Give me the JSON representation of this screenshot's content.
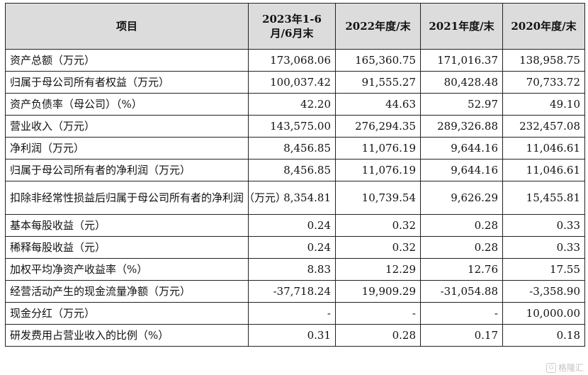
{
  "table": {
    "headers": [
      "项目",
      "2023年1-6月/6月末",
      "2022年度/末",
      "2021年度/末",
      "2020年度/末"
    ],
    "rows": [
      {
        "label": "资产总额（万元）",
        "values": [
          "173,068.06",
          "165,360.75",
          "171,016.37",
          "138,958.75"
        ]
      },
      {
        "label": "归属于母公司所有者权益（万元）",
        "values": [
          "100,037.42",
          "91,555.27",
          "80,428.48",
          "70,733.72"
        ]
      },
      {
        "label": "资产负债率（母公司）（%）",
        "values": [
          "42.20",
          "44.63",
          "52.97",
          "49.10"
        ]
      },
      {
        "label": "营业收入（万元）",
        "values": [
          "143,575.00",
          "276,294.35",
          "289,326.88",
          "232,457.08"
        ]
      },
      {
        "label": "净利润（万元）",
        "values": [
          "8,456.85",
          "11,076.19",
          "9,644.16",
          "11,046.61"
        ]
      },
      {
        "label": "归属于母公司所有者的净利润（万元）",
        "values": [
          "8,456.85",
          "11,076.19",
          "9,644.16",
          "11,046.61"
        ]
      },
      {
        "label": "扣除非经常性损益后归属于母公司所有者的净利润（万元）",
        "values": [
          "8,354.81",
          "10,739.54",
          "9,626.29",
          "15,455.81"
        ]
      },
      {
        "label": "基本每股收益（元）",
        "values": [
          "0.24",
          "0.32",
          "0.28",
          "0.33"
        ]
      },
      {
        "label": "稀释每股收益（元）",
        "values": [
          "0.24",
          "0.32",
          "0.28",
          "0.33"
        ]
      },
      {
        "label": "加权平均净资产收益率（%）",
        "values": [
          "8.83",
          "12.29",
          "12.76",
          "17.55"
        ]
      },
      {
        "label": "经营活动产生的现金流量净额（万元）",
        "values": [
          "-37,718.24",
          "19,909.29",
          "-31,054.88",
          "-3,358.90"
        ]
      },
      {
        "label": "现金分红（万元）",
        "values": [
          "-",
          "-",
          "-",
          "10,000.00"
        ]
      },
      {
        "label": "研发费用占营业收入的比例（%）",
        "values": [
          "0.31",
          "0.28",
          "0.17",
          "0.18"
        ]
      }
    ]
  },
  "watermark": {
    "text": "格隆汇",
    "icon": "gelonghui-logo-icon"
  }
}
